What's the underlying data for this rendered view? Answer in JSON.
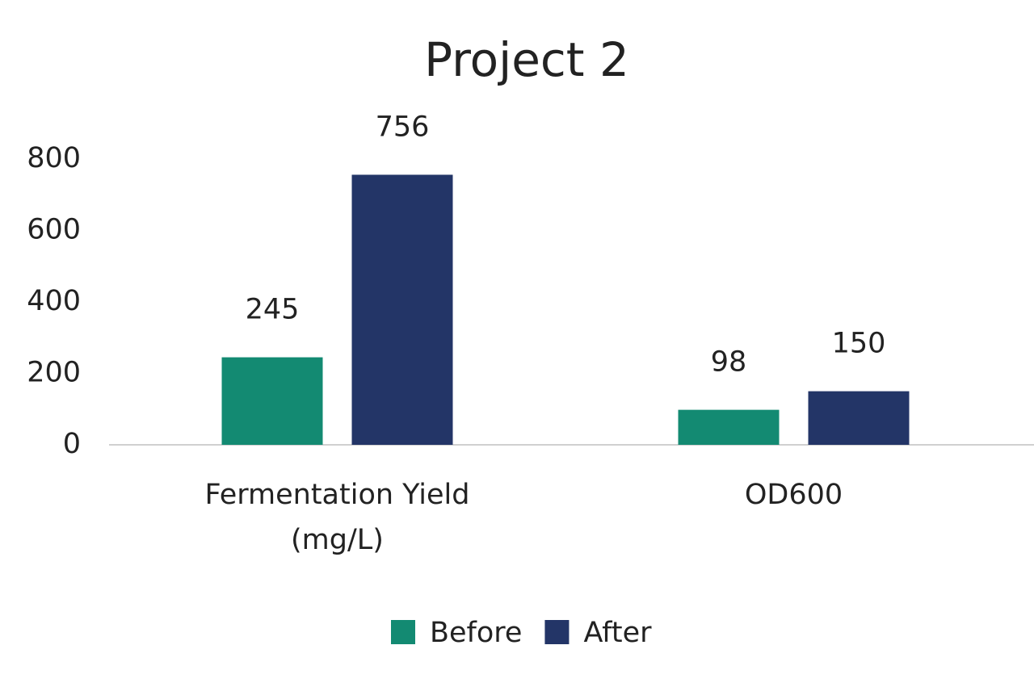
{
  "chart_data": {
    "type": "bar",
    "title": "Project 2",
    "categories": [
      "Fermentation Yield (mg/L)",
      "OD600"
    ],
    "series": [
      {
        "name": "Before",
        "color": "#138a72",
        "values": [
          245,
          98
        ]
      },
      {
        "name": "After",
        "color": "#233567",
        "values": [
          756,
          150
        ]
      }
    ],
    "ylim": [
      0,
      800
    ],
    "yticks": [
      0,
      200,
      400,
      600,
      800
    ],
    "grid": false,
    "legend": "bottom"
  }
}
